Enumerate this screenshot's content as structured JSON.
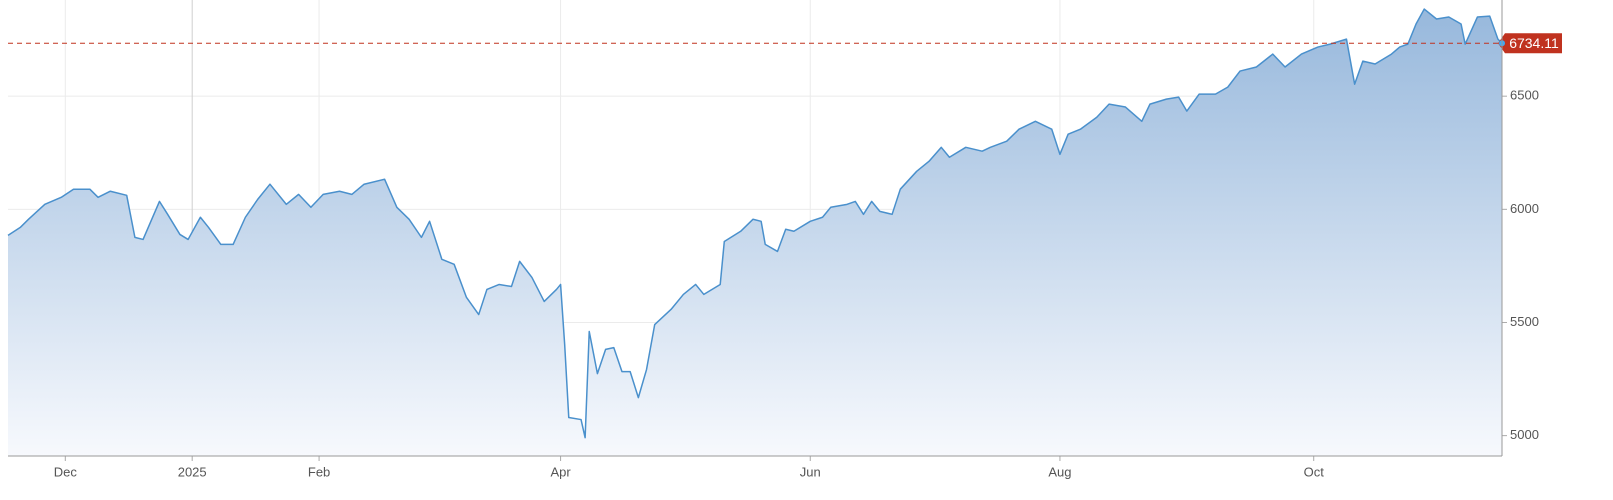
{
  "chart_data": {
    "type": "area",
    "x": [
      0,
      3,
      5,
      9,
      13,
      16,
      20,
      22,
      25,
      29,
      31,
      33,
      37,
      39,
      42,
      44,
      47,
      49,
      52,
      55,
      58,
      61,
      64,
      68,
      71,
      74,
      77,
      81,
      84,
      87,
      92,
      95,
      98,
      101,
      103,
      106,
      109,
      112,
      115,
      117,
      120,
      123,
      125,
      128,
      131,
      134,
      135,
      136,
      137,
      140,
      141,
      142,
      144,
      146,
      148,
      150,
      152,
      154,
      156,
      158,
      162,
      165,
      168,
      170,
      174,
      175,
      179,
      182,
      184,
      185,
      188,
      190,
      192,
      196,
      199,
      201,
      205,
      207,
      209,
      211,
      213,
      216,
      218,
      222,
      225,
      228,
      230,
      234,
      238,
      240,
      244,
      247,
      251,
      255,
      257,
      259,
      262,
      266,
      269,
      273,
      277,
      279,
      283,
      286,
      288,
      291,
      295,
      298,
      301,
      305,
      309,
      312,
      316,
      320,
      323,
      327,
      329,
      331,
      334,
      338,
      340,
      342,
      344,
      346,
      349,
      352,
      355,
      356,
      359,
      362,
      364,
      365
    ],
    "values": [
      5885,
      5920,
      5956,
      6022,
      6053,
      6089,
      6089,
      6053,
      6080,
      6062,
      5876,
      5867,
      6035,
      5978,
      5889,
      5867,
      5965,
      5920,
      5845,
      5845,
      5965,
      6044,
      6111,
      6022,
      6066,
      6009,
      6066,
      6080,
      6066,
      6111,
      6133,
      6009,
      5956,
      5876,
      5947,
      5779,
      5757,
      5611,
      5535,
      5646,
      5668,
      5659,
      5770,
      5699,
      5593,
      5646,
      5668,
      5403,
      5080,
      5071,
      4991,
      5460,
      5274,
      5381,
      5389,
      5283,
      5283,
      5168,
      5292,
      5491,
      5558,
      5624,
      5668,
      5624,
      5668,
      5858,
      5903,
      5956,
      5947,
      5845,
      5814,
      5912,
      5903,
      5947,
      5965,
      6009,
      6022,
      6035,
      5978,
      6035,
      5991,
      5978,
      6089,
      6168,
      6212,
      6274,
      6230,
      6274,
      6257,
      6274,
      6301,
      6354,
      6389,
      6354,
      6243,
      6332,
      6354,
      6407,
      6465,
      6452,
      6389,
      6465,
      6487,
      6496,
      6434,
      6509,
      6509,
      6540,
      6611,
      6629,
      6686,
      6629,
      6686,
      6717,
      6730,
      6752,
      6553,
      6655,
      6642,
      6686,
      6717,
      6730,
      6819,
      6885,
      6841,
      6850,
      6819,
      6730,
      6850,
      6854,
      6752,
      6734.11
    ],
    "color": "#4a90cc",
    "xlim": [
      0,
      365
    ],
    "xticks": [
      {
        "value": 14,
        "label": "Dec"
      },
      {
        "value": 45,
        "label": "2025"
      },
      {
        "value": 76,
        "label": "Feb"
      },
      {
        "value": 135,
        "label": "Apr"
      },
      {
        "value": 196,
        "label": "Jun"
      },
      {
        "value": 257,
        "label": "Aug"
      },
      {
        "value": 319,
        "label": "Oct"
      }
    ],
    "ylim": [
      4910,
      6925
    ],
    "yticks": [
      5000,
      5500,
      6000,
      6500
    ],
    "grid": true,
    "last_marker_color": "#c0321f"
  }
}
